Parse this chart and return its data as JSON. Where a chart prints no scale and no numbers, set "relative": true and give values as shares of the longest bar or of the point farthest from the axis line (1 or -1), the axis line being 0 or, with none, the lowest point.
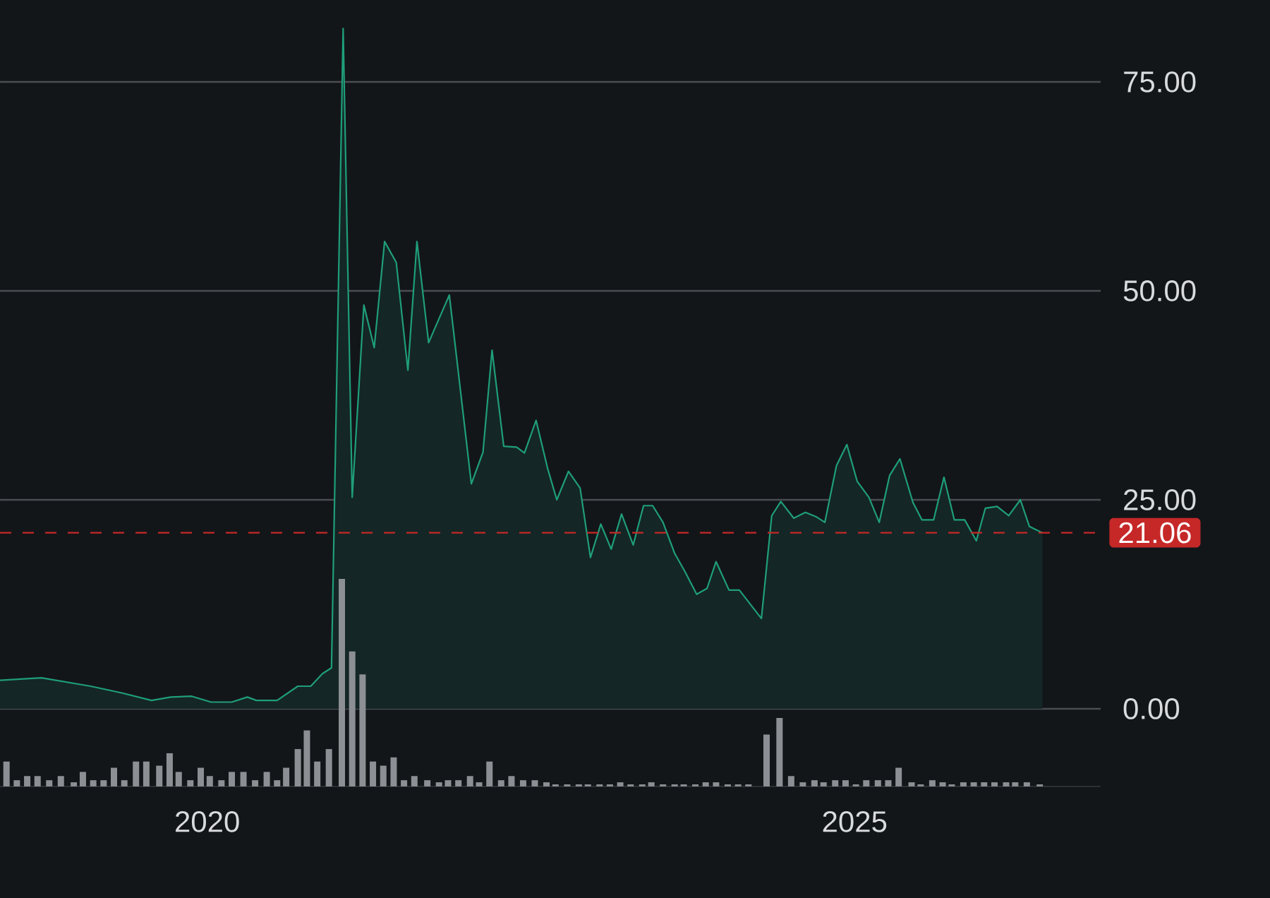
{
  "chart_data": [
    {
      "type": "area",
      "xlim": [
        2018.4,
        2026.9
      ],
      "ylim": [
        0,
        84.8
      ],
      "yticks": [
        {
          "value": 0,
          "label": "0.00"
        },
        {
          "value": 25,
          "label": "25.00"
        },
        {
          "value": 50,
          "label": "50.00"
        },
        {
          "value": 75,
          "label": "75.00"
        }
      ],
      "grid": "y",
      "tick_labels": "y",
      "line_style": "solid",
      "ref_lines": [
        {
          "axis": "y",
          "value": 21.06,
          "label": "21.06",
          "color": "#c62828",
          "line_style": "dashed"
        }
      ],
      "color": "#1f9e7a",
      "x": [
        2018.4,
        2018.72,
        2019.1,
        2019.34,
        2019.57,
        2019.72,
        2019.88,
        2020.03,
        2020.19,
        2020.31,
        2020.38,
        2020.54,
        2020.7,
        2020.8,
        2020.89,
        2020.96,
        2021.05,
        2021.12,
        2021.21,
        2021.29,
        2021.37,
        2021.46,
        2021.55,
        2021.62,
        2021.71,
        2021.87,
        2022.04,
        2022.13,
        2022.2,
        2022.29,
        2022.39,
        2022.45,
        2022.54,
        2022.63,
        2022.7,
        2022.79,
        2022.88,
        2022.96,
        2023.04,
        2023.12,
        2023.2,
        2023.29,
        2023.37,
        2023.44,
        2023.52,
        2023.61,
        2023.69,
        2023.78,
        2023.86,
        2023.93,
        2024.03,
        2024.11,
        2024.28,
        2024.36,
        2024.43,
        2024.53,
        2024.62,
        2024.7,
        2024.77,
        2024.86,
        2024.94,
        2025.02,
        2025.11,
        2025.19,
        2025.27,
        2025.35,
        2025.45,
        2025.52,
        2025.61,
        2025.69,
        2025.77,
        2025.85,
        2025.94,
        2026.01,
        2026.1,
        2026.19,
        2026.28,
        2026.35,
        2026.45
      ],
      "values": [
        3.4,
        3.7,
        2.7,
        1.9,
        1.0,
        1.4,
        1.5,
        0.8,
        0.8,
        1.4,
        1.0,
        1.0,
        2.7,
        2.7,
        4.2,
        4.9,
        81.4,
        25.3,
        48.3,
        43.2,
        55.9,
        53.4,
        40.5,
        55.9,
        43.8,
        49.5,
        26.9,
        30.7,
        42.9,
        31.4,
        31.3,
        30.6,
        34.5,
        28.7,
        25.0,
        28.4,
        26.4,
        18.1,
        22.1,
        19.1,
        23.3,
        19.6,
        24.3,
        24.3,
        22.3,
        18.6,
        16.4,
        13.7,
        14.4,
        17.6,
        14.2,
        14.2,
        10.8,
        23.1,
        24.8,
        22.8,
        23.5,
        23.0,
        22.3,
        29.1,
        31.6,
        27.2,
        25.3,
        22.3,
        27.9,
        29.9,
        24.7,
        22.6,
        22.6,
        27.7,
        22.6,
        22.6,
        20.1,
        24.0,
        24.2,
        23.1,
        25.0,
        21.8,
        21.06
      ]
    },
    {
      "type": "bar",
      "relative": true,
      "xlim": [
        2018.4,
        2026.9
      ],
      "xticks": [
        2020,
        2025
      ],
      "tick_labels": "x",
      "color": "#8c8f93",
      "x": [
        2018.45,
        2018.53,
        2018.61,
        2018.69,
        2018.78,
        2018.87,
        2018.97,
        2019.04,
        2019.12,
        2019.2,
        2019.28,
        2019.36,
        2019.45,
        2019.53,
        2019.63,
        2019.71,
        2019.78,
        2019.87,
        2019.95,
        2020.02,
        2020.11,
        2020.19,
        2020.28,
        2020.37,
        2020.46,
        2020.54,
        2020.61,
        2020.7,
        2020.77,
        2020.85,
        2020.94,
        2021.04,
        2021.12,
        2021.2,
        2021.28,
        2021.36,
        2021.44,
        2021.52,
        2021.6,
        2021.7,
        2021.79,
        2021.86,
        2021.94,
        2022.03,
        2022.1,
        2022.18,
        2022.27,
        2022.35,
        2022.44,
        2022.53,
        2022.62,
        2022.69,
        2022.78,
        2022.87,
        2022.94,
        2023.03,
        2023.11,
        2023.19,
        2023.27,
        2023.36,
        2023.43,
        2023.52,
        2023.61,
        2023.68,
        2023.77,
        2023.85,
        2023.93,
        2024.02,
        2024.1,
        2024.18,
        2024.32,
        2024.42,
        2024.51,
        2024.6,
        2024.69,
        2024.76,
        2024.85,
        2024.93,
        2025.01,
        2025.09,
        2025.18,
        2025.26,
        2025.34,
        2025.44,
        2025.51,
        2025.6,
        2025.68,
        2025.75,
        2025.84,
        2025.92,
        2026.0,
        2026.08,
        2026.17,
        2026.24,
        2026.33,
        2026.43
      ],
      "values": [
        0.12,
        0.03,
        0.05,
        0.05,
        0.03,
        0.05,
        0.02,
        0.07,
        0.03,
        0.03,
        0.09,
        0.03,
        0.12,
        0.12,
        0.1,
        0.16,
        0.07,
        0.03,
        0.09,
        0.05,
        0.03,
        0.07,
        0.07,
        0.03,
        0.07,
        0.03,
        0.09,
        0.18,
        0.27,
        0.12,
        0.18,
        1.0,
        0.65,
        0.54,
        0.12,
        0.1,
        0.14,
        0.03,
        0.05,
        0.03,
        0.02,
        0.03,
        0.03,
        0.05,
        0.02,
        0.12,
        0.03,
        0.05,
        0.03,
        0.03,
        0.02,
        0.01,
        0.01,
        0.01,
        0.01,
        0.01,
        0.01,
        0.02,
        0.01,
        0.01,
        0.02,
        0.01,
        0.01,
        0.01,
        0.01,
        0.02,
        0.02,
        0.01,
        0.01,
        0.01,
        0.25,
        0.33,
        0.05,
        0.02,
        0.03,
        0.02,
        0.03,
        0.03,
        0.01,
        0.03,
        0.03,
        0.03,
        0.09,
        0.02,
        0.01,
        0.03,
        0.02,
        0.01,
        0.02,
        0.02,
        0.02,
        0.02,
        0.02,
        0.02,
        0.02,
        0.01
      ]
    }
  ]
}
